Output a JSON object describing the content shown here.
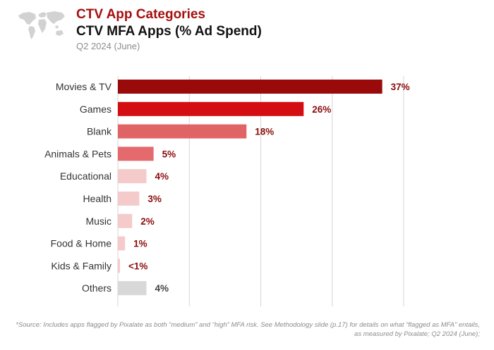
{
  "header": {
    "title": "CTV App Categories",
    "subtitle": "CTV MFA Apps (% Ad Spend)",
    "period": "Q2 2024 (June)"
  },
  "footnote": "*Source: Includes apps flagged by Pixalate as both “medium” and “high” MFA risk. See Methodology slide (p.17) for details on what “flagged as MFA” entails, as measured by Pixalate; Q2 2024 (June);",
  "icons": {
    "logo": "world-map-icon"
  },
  "colors": {
    "title": "#a50f0f",
    "label_value": "#8b0d0d",
    "label_gray": "#444444",
    "grid": "#d6d6d6"
  },
  "chart_data": {
    "type": "bar",
    "orientation": "horizontal",
    "title": "CTV MFA Apps (% Ad Spend)",
    "xlabel": "",
    "ylabel": "",
    "xlim": [
      0,
      40
    ],
    "grid": true,
    "legend": "none",
    "categories": [
      "Movies & TV",
      "Games",
      "Blank",
      "Animals & Pets",
      "Educational",
      "Health",
      "Music",
      "Food & Home",
      "Kids & Family",
      "Others"
    ],
    "values": [
      37,
      26,
      18,
      5,
      4,
      3,
      2,
      1,
      0.3,
      4
    ],
    "labels": [
      "37%",
      "26%",
      "18%",
      "5%",
      "4%",
      "3%",
      "2%",
      "1%",
      "<1%",
      "4%"
    ],
    "colors": [
      "#9a0a0a",
      "#d40d12",
      "#e06466",
      "#e46a6e",
      "#f5caca",
      "#f5caca",
      "#f5caca",
      "#f5caca",
      "#f5caca",
      "#d8d8d8"
    ]
  }
}
